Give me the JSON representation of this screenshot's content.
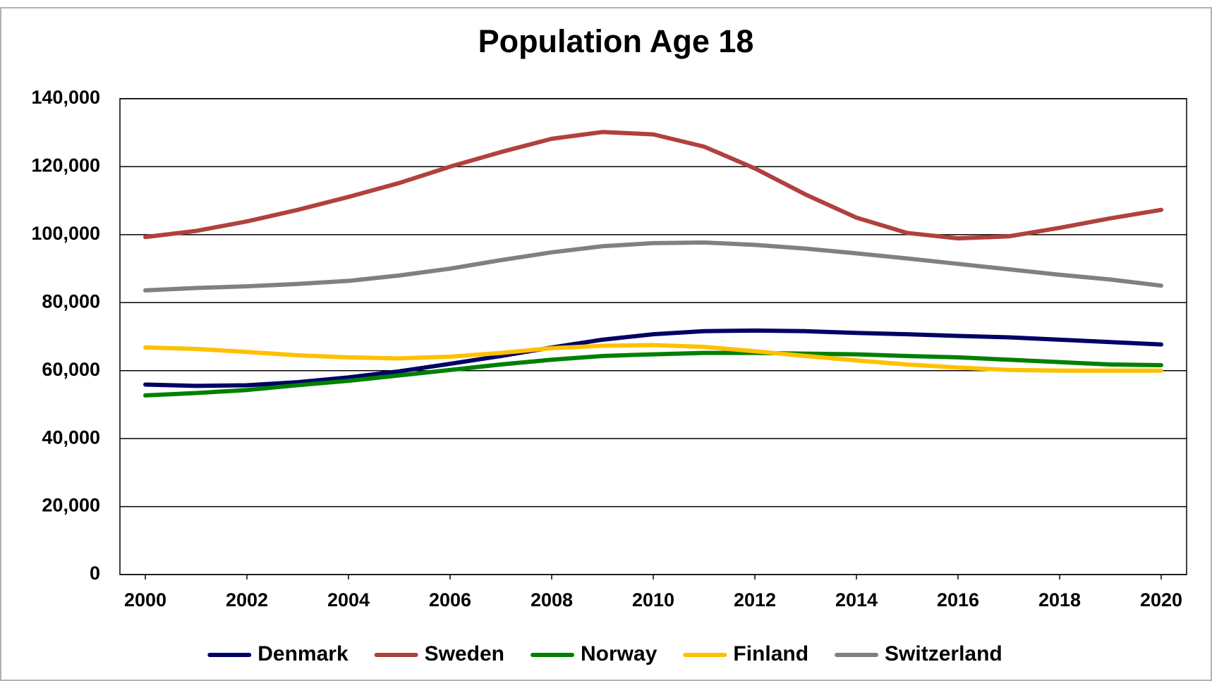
{
  "chart_data": {
    "type": "line",
    "title": "Population Age 18",
    "x": [
      2000,
      2001,
      2002,
      2003,
      2004,
      2005,
      2006,
      2007,
      2008,
      2009,
      2010,
      2011,
      2012,
      2013,
      2014,
      2015,
      2016,
      2017,
      2018,
      2019,
      2020
    ],
    "xlim": [
      1999.5,
      2020.5
    ],
    "xticks": [
      2000,
      2002,
      2004,
      2006,
      2008,
      2010,
      2012,
      2014,
      2016,
      2018,
      2020
    ],
    "ylim": [
      0,
      140000
    ],
    "yticks": [
      0,
      {
        "value": 20000,
        "label": "20,000"
      },
      {
        "value": 40000,
        "label": "40,000"
      },
      {
        "value": 60000,
        "label": "60,000"
      },
      {
        "value": 80000,
        "label": "80,000"
      },
      {
        "value": 100000,
        "label": "100,000"
      },
      {
        "value": 120000,
        "label": "120,000"
      },
      {
        "value": 140000,
        "label": "140,000"
      }
    ],
    "grid": true,
    "legend": "bottom",
    "series": [
      {
        "name": "Denmark",
        "color": "#000066",
        "values": [
          55900,
          55500,
          55700,
          56600,
          58000,
          59800,
          62000,
          64300,
          66800,
          69100,
          70700,
          71600,
          71800,
          71600,
          71100,
          70700,
          70200,
          69800,
          69100,
          68400,
          67700
        ]
      },
      {
        "name": "Sweden",
        "color": "#b0413e",
        "values": [
          99300,
          101100,
          103900,
          107300,
          111100,
          115200,
          120000,
          124300,
          128200,
          130200,
          129500,
          125900,
          119500,
          111800,
          105000,
          100500,
          98900,
          99500,
          102000,
          104800,
          107300
        ]
      },
      {
        "name": "Norway",
        "color": "#008000",
        "values": [
          52700,
          53400,
          54300,
          55700,
          57000,
          58600,
          60200,
          61800,
          63200,
          64300,
          64800,
          65200,
          65200,
          65000,
          64800,
          64300,
          63900,
          63200,
          62500,
          61800,
          61600
        ]
      },
      {
        "name": "Finland",
        "color": "#ffc000",
        "values": [
          66800,
          66400,
          65500,
          64500,
          63900,
          63600,
          64100,
          65200,
          66600,
          67300,
          67500,
          67000,
          65700,
          64300,
          63000,
          61800,
          60900,
          60200,
          60000,
          60000,
          60000
        ]
      },
      {
        "name": "Switzerland",
        "color": "#808080",
        "values": [
          83600,
          84300,
          84800,
          85500,
          86400,
          88000,
          90000,
          92500,
          94800,
          96600,
          97500,
          97700,
          97000,
          95900,
          94500,
          93000,
          91400,
          89800,
          88200,
          86800,
          85000
        ]
      }
    ]
  }
}
